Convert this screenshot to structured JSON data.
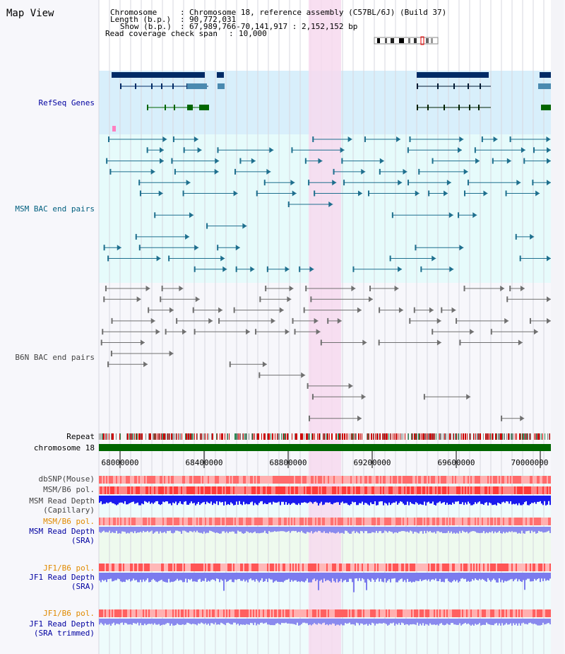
{
  "window": {
    "title": "Map View"
  },
  "header": {
    "chromosome_key": "Chromosome",
    "chromosome_val": "Chromosome 18, reference assembly (C57BL/6J) (Build 37)",
    "length_key": "Length (b.p.)",
    "length_val": "90,772,031",
    "show_key": "Show (b.p.)",
    "show_val": "67,989,766-70,141,917 : 2,152,152 bp",
    "span_key": "Read coverage check span",
    "span_val": "10,000"
  },
  "tracks": {
    "refseq": "RefSeq Genes",
    "msm_bac": "MSM BAC end pairs",
    "b6n_bac": "B6N BAC end pairs",
    "repeat": "Repeat",
    "chromosome": "chromosome 18",
    "dbsnp": "dbSNP(Mouse)",
    "msm_b6_pol_1": "MSM/B6 pol.",
    "msm_read_depth_cap_1": "MSM Read Depth",
    "msm_read_depth_cap_2": "(Capillary)",
    "msm_b6_pol_2": "MSM/B6 pol.",
    "msm_read_depth_sra_1": "MSM Read Depth",
    "msm_read_depth_sra_2": "(SRA)",
    "jf1_b6_pol_1": "JF1/B6 pol.",
    "jf1_read_depth_sra_1": "JF1 Read Depth",
    "jf1_read_depth_sra_2": "(SRA)",
    "jf1_b6_pol_2": "JF1/B6 pol.",
    "jf1_read_depth_trim_1": "JF1 Read Depth",
    "jf1_read_depth_trim_2": "(SRA trimmed)"
  },
  "axis": {
    "ticks": [
      "68000000",
      "68400000",
      "68800000",
      "69200000",
      "69600000",
      "70000000"
    ]
  },
  "colors": {
    "refseq_bg": "#d8effb",
    "msm_bg": "#e6fbfb",
    "highlight": "#f7d9ef",
    "gene": "#002b66",
    "msm_pair": "#1e6f8e",
    "b6n_pair": "#707070",
    "chrom_bar": "#006600",
    "depth_blue": "#1a1aee"
  }
}
